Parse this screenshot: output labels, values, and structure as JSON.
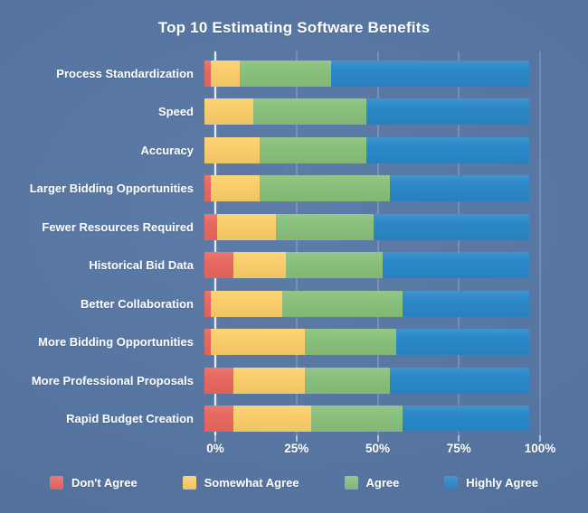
{
  "title": "Top 10 Estimating Software Benefits",
  "colors": {
    "background": "#55749f",
    "red": "#e8685f",
    "yellow": "#fbce6b",
    "green": "#89c07c",
    "blue": "#2b88c8",
    "axis_line": "#f0f4fa",
    "gridline": "rgba(255,255,255,0.17)",
    "text": "#ffffff"
  },
  "chart_data": {
    "type": "bar",
    "orientation": "horizontal",
    "stacked": true,
    "title": "Top 10 Estimating Software Benefits",
    "xlabel": "",
    "ylabel": "",
    "xlim": [
      0,
      100
    ],
    "grid": true,
    "legend_position": "bottom",
    "categories": [
      "Process Standardization",
      "Speed",
      "Accuracy",
      "Larger Bidding Opportunities",
      "Fewer Resources Required",
      "Historical Bid Data",
      "Better Collaboration",
      "More Bidding Opportunities",
      "More Professional Proposals",
      "Rapid Budget Creation"
    ],
    "series": [
      {
        "name": "Don't Agree",
        "color_key": "red",
        "values": [
          2,
          0,
          0,
          2,
          4,
          9,
          2,
          2,
          9,
          9
        ]
      },
      {
        "name": "Somewhat Agree",
        "color_key": "yellow",
        "values": [
          9,
          15,
          17,
          15,
          18,
          16,
          22,
          29,
          22,
          24
        ]
      },
      {
        "name": "Agree",
        "color_key": "green",
        "values": [
          28,
          35,
          33,
          40,
          30,
          30,
          37,
          28,
          26,
          28
        ]
      },
      {
        "name": "Highly Agree",
        "color_key": "blue",
        "values": [
          61,
          50,
          50,
          43,
          48,
          45,
          39,
          41,
          43,
          39
        ]
      }
    ],
    "x_ticks": [
      {
        "value": 0,
        "label": "0%"
      },
      {
        "value": 25,
        "label": "25%"
      },
      {
        "value": 50,
        "label": "50%"
      },
      {
        "value": 75,
        "label": "75%"
      },
      {
        "value": 100,
        "label": "100%"
      }
    ]
  }
}
